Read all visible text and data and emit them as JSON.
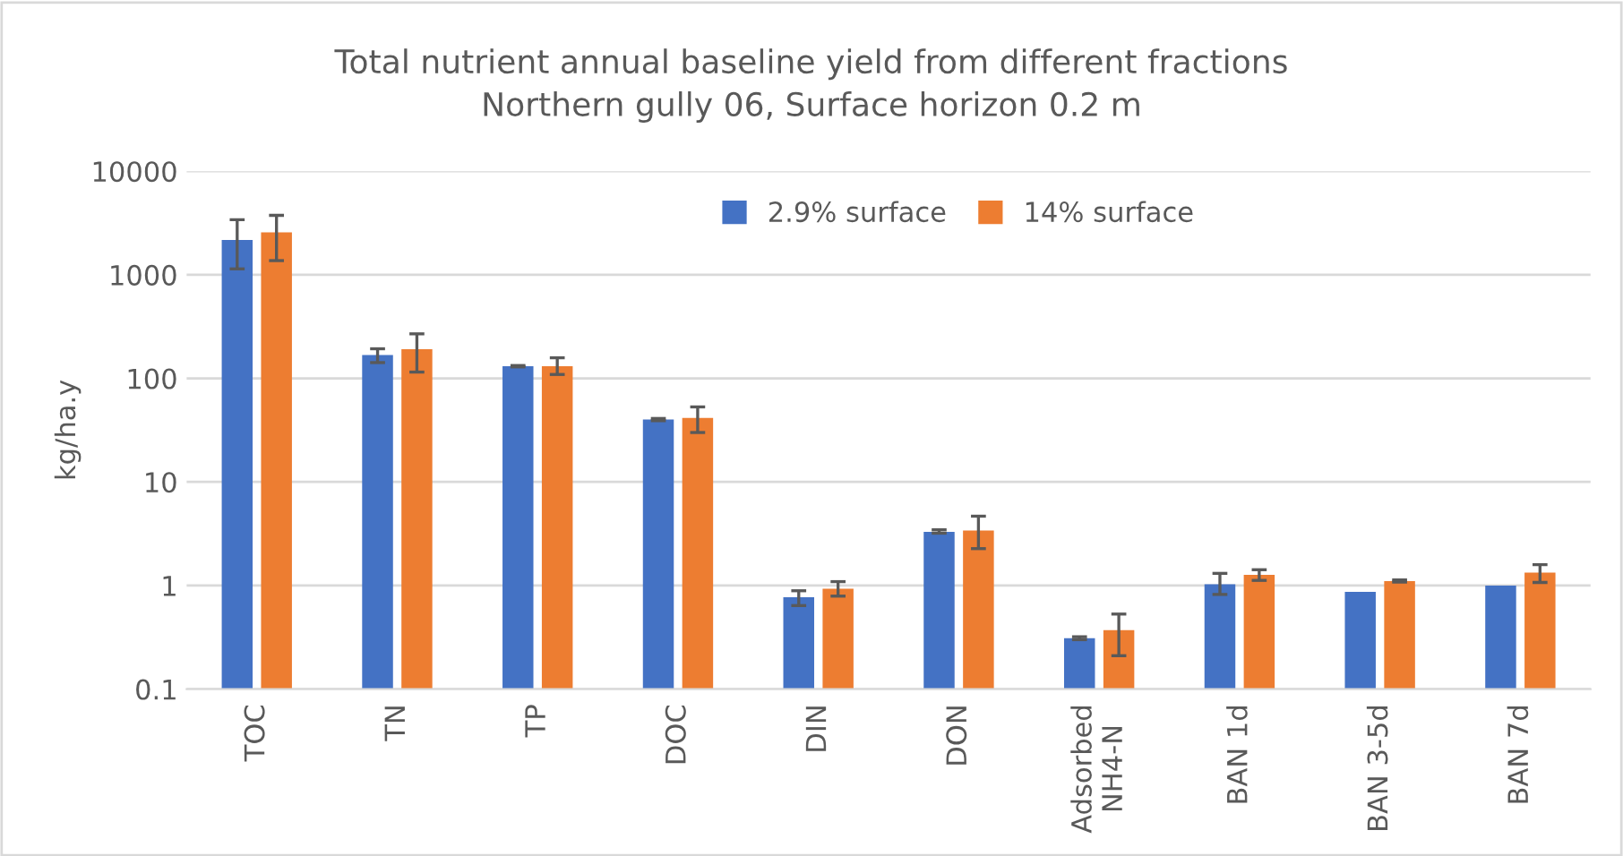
{
  "chart_data": {
    "type": "bar",
    "title": "Total nutrient annual baseline yield from different fractions",
    "subtitle": "Northern gully 06, Surface horizon 0.2 m",
    "ylabel": "kg/ha.y",
    "categories": [
      "TOC",
      "TN",
      "TP",
      "DOC",
      "DIN",
      "DON",
      "Adsorbed\nNH4-N",
      "BAN 1d",
      "BAN 3-5d",
      "BAN 7d"
    ],
    "series": [
      {
        "name": "2.9% surface",
        "color": "#4472c4",
        "values": [
          2170,
          168,
          131,
          40,
          0.77,
          3.3,
          0.31,
          1.03,
          0.87,
          1.0
        ],
        "errors": [
          [
            1140,
            3400
          ],
          [
            142,
            193
          ],
          [
            129,
            133
          ],
          [
            39,
            41
          ],
          [
            0.64,
            0.89
          ],
          [
            3.2,
            3.45
          ],
          [
            0.3,
            0.32
          ],
          [
            0.82,
            1.31
          ],
          null,
          null
        ]
      },
      {
        "name": "14% surface",
        "color": "#ed7d31",
        "values": [
          2570,
          191,
          131,
          41.5,
          0.93,
          3.4,
          0.37,
          1.27,
          1.1,
          1.33
        ],
        "errors": [
          [
            1370,
            3750
          ],
          [
            115,
            269
          ],
          [
            109,
            158
          ],
          [
            30,
            53
          ],
          [
            0.79,
            1.09
          ],
          [
            2.27,
            4.67
          ],
          [
            0.21,
            0.53
          ],
          [
            1.12,
            1.42
          ],
          [
            1.08,
            1.13
          ],
          [
            1.07,
            1.59
          ]
        ]
      }
    ],
    "log": "y",
    "ylim": [
      0.1,
      10000
    ],
    "yticks": [
      0.1,
      1,
      10,
      100,
      1000,
      10000
    ],
    "grid": "y",
    "legend": "top"
  }
}
